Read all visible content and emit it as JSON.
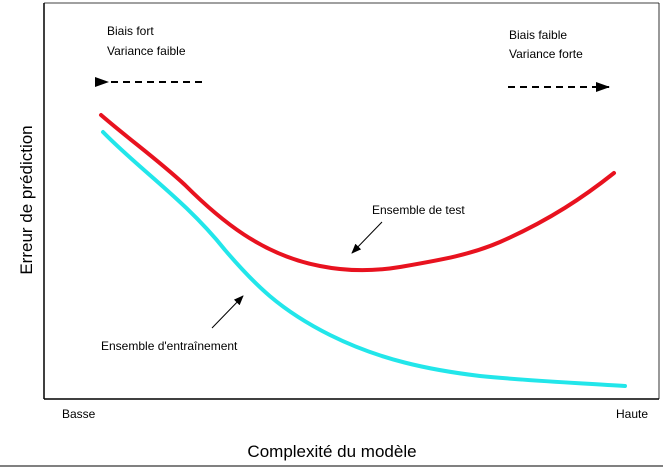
{
  "y_axis_label": "Erreur de prédiction",
  "x_axis_label": "Complexité du modèle",
  "x_low_label": "Basse",
  "x_high_label": "Haute",
  "top_left_annotation": {
    "line1": "Biais fort",
    "line2": "Variance faible"
  },
  "top_right_annotation": {
    "line1": "Biais faible",
    "line2": "Variance forte"
  },
  "test_curve_label": "Ensemble de test",
  "train_curve_label": "Ensemble d'entraînement",
  "colors": {
    "test_curve": "#e8121f",
    "train_curve": "#22e6ea",
    "axes": "#000000",
    "arrows": "#000000"
  }
}
